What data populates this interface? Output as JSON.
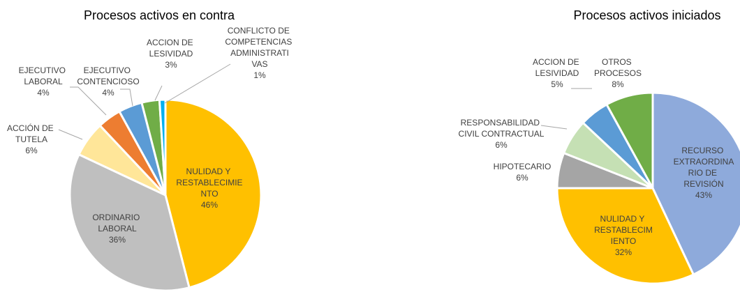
{
  "chart_data": [
    {
      "type": "pie",
      "title": "Procesos activos en contra",
      "categories": [
        "NULIDAD Y RESTABLECIMIENTO",
        "ORDINARIO LABORAL",
        "ACCIÓN DE TUTELA",
        "EJECUTIVO LABORAL",
        "EJECUTIVO CONTENCIOSO",
        "ACCION DE LESIVIDAD",
        "CONFLICTO DE COMPETENCIAS ADMINISTRATIVAS"
      ],
      "values": [
        46,
        36,
        6,
        4,
        4,
        3,
        1
      ],
      "value_labels": [
        "46%",
        "36%",
        "6%",
        "4%",
        "4%",
        "3%",
        "1%"
      ],
      "colors": [
        "#ffc000",
        "#bfbfbf",
        "#ffe699",
        "#ed7d31",
        "#5b9bd5",
        "#70ad47",
        "#00b0f0"
      ]
    },
    {
      "type": "pie",
      "title": "Procesos activos iniciados",
      "categories": [
        "RECURSO EXTRAORDINARIO DE REVISIÓN",
        "NULIDAD Y RESTABLECIMIENTO",
        "HIPOTECARIO",
        "RESPONSABILIDAD CIVIL CONTRACTUAL",
        "ACCION DE LESIVIDAD",
        "OTROS PROCESOS"
      ],
      "values": [
        43,
        32,
        6,
        6,
        5,
        8
      ],
      "value_labels": [
        "43%",
        "32%",
        "6%",
        "6%",
        "5%",
        "8%"
      ],
      "colors": [
        "#8eaadb",
        "#ffc000",
        "#a5a5a5",
        "#c5e0b4",
        "#5b9bd5",
        "#70ad47"
      ]
    }
  ]
}
